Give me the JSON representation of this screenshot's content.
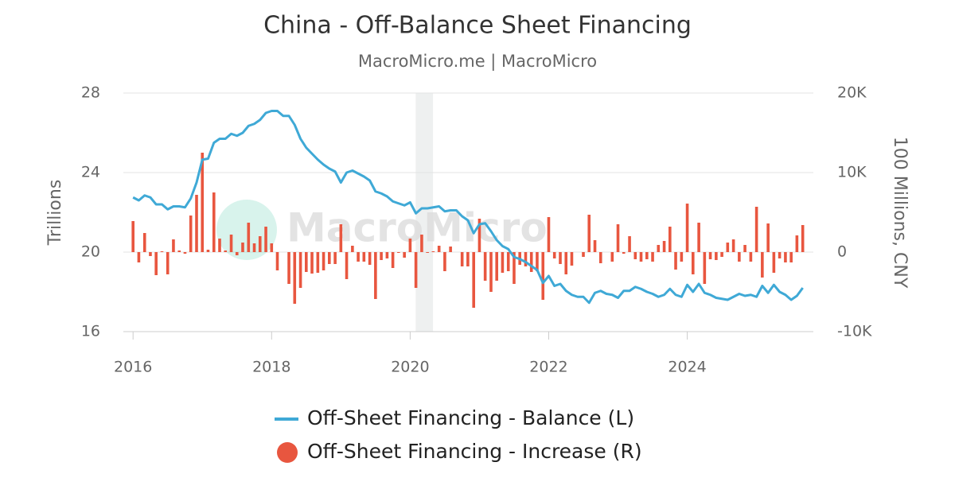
{
  "chart_data": {
    "type": "combo",
    "title": "China - Off-Balance Sheet Financing",
    "subtitle": "MacroMicro.me | MacroMicro",
    "watermark": "MacroMicro",
    "y_label": "Trillions",
    "y2_label": "100 Millions, CNY",
    "x": [
      2016,
      2016.083,
      2016.167,
      2016.25,
      2016.333,
      2016.417,
      2016.5,
      2016.583,
      2016.667,
      2016.75,
      2016.833,
      2016.917,
      2017,
      2017.083,
      2017.167,
      2017.25,
      2017.333,
      2017.417,
      2017.5,
      2017.583,
      2017.667,
      2017.75,
      2017.833,
      2017.917,
      2018,
      2018.083,
      2018.167,
      2018.25,
      2018.333,
      2018.417,
      2018.5,
      2018.583,
      2018.667,
      2018.75,
      2018.833,
      2018.917,
      2019,
      2019.083,
      2019.167,
      2019.25,
      2019.333,
      2019.417,
      2019.5,
      2019.583,
      2019.667,
      2019.75,
      2019.833,
      2019.917,
      2020,
      2020.083,
      2020.167,
      2020.25,
      2020.333,
      2020.417,
      2020.5,
      2020.583,
      2020.667,
      2020.75,
      2020.833,
      2020.917,
      2021,
      2021.083,
      2021.167,
      2021.25,
      2021.333,
      2021.417,
      2021.5,
      2021.583,
      2021.667,
      2021.75,
      2021.833,
      2021.917,
      2022,
      2022.083,
      2022.167,
      2022.25,
      2022.333,
      2022.417,
      2022.5,
      2022.583,
      2022.667,
      2022.75,
      2022.833,
      2022.917,
      2023,
      2023.083,
      2023.167,
      2023.25,
      2023.333,
      2023.417,
      2023.5,
      2023.583,
      2023.667,
      2023.75,
      2023.833,
      2023.917,
      2024,
      2024.083,
      2024.167,
      2024.25,
      2024.333,
      2024.417,
      2024.5,
      2024.583,
      2024.667,
      2024.75,
      2024.833,
      2024.917,
      2025,
      2025.083,
      2025.167,
      2025.25,
      2025.333,
      2025.417,
      2025.5,
      2025.583,
      2025.667
    ],
    "series": [
      {
        "name": "Off-Sheet Financing - Balance (L)",
        "type": "line",
        "axis": "y",
        "color": "#3fa9d6",
        "values": [
          22.75,
          22.6,
          22.85,
          22.75,
          22.4,
          22.4,
          22.15,
          22.3,
          22.3,
          22.25,
          22.7,
          23.5,
          24.65,
          24.7,
          25.5,
          25.7,
          25.7,
          25.95,
          25.85,
          26.0,
          26.35,
          26.45,
          26.65,
          27.0,
          27.1,
          27.1,
          26.85,
          26.85,
          26.4,
          25.7,
          25.25,
          24.95,
          24.65,
          24.4,
          24.2,
          24.05,
          23.5,
          24.0,
          24.1,
          23.95,
          23.8,
          23.6,
          23.05,
          22.95,
          22.8,
          22.55,
          22.45,
          22.35,
          22.5,
          21.95,
          22.2,
          22.2,
          22.25,
          22.3,
          22.05,
          22.1,
          22.1,
          21.8,
          21.6,
          20.95,
          21.4,
          21.45,
          21.05,
          20.6,
          20.3,
          20.15,
          19.75,
          19.65,
          19.5,
          19.3,
          19.1,
          18.45,
          18.8,
          18.3,
          18.4,
          18.05,
          17.85,
          17.75,
          17.75,
          17.45,
          17.95,
          18.05,
          17.9,
          17.85,
          17.7,
          18.05,
          18.05,
          18.25,
          18.15,
          18.0,
          17.9,
          17.75,
          17.85,
          18.15,
          17.85,
          17.75,
          18.35,
          18.0,
          18.4,
          17.95,
          17.85,
          17.7,
          17.65,
          17.6,
          17.75,
          17.9,
          17.8,
          17.85,
          17.75,
          18.3,
          17.95,
          18.35,
          18.0,
          17.85,
          17.6,
          17.8,
          18.2
        ]
      },
      {
        "name": "Off-Sheet Financing - Increase (R)",
        "type": "bar",
        "axis": "y2",
        "color": "#e8563f",
        "values": [
          3900,
          -1300,
          2400,
          -500,
          -2900,
          100,
          -2800,
          1600,
          200,
          -200,
          4600,
          7200,
          12500,
          300,
          7500,
          1700,
          200,
          2200,
          -400,
          1200,
          3700,
          1100,
          2000,
          3200,
          1100,
          -2300,
          0,
          -4000,
          -6500,
          -4500,
          -2500,
          -2700,
          -2600,
          -2300,
          -1500,
          -1500,
          3500,
          -3400,
          800,
          -1200,
          -1200,
          -1600,
          -5900,
          -1000,
          -800,
          -2000,
          -100,
          -700,
          1700,
          -4500,
          2200,
          -100,
          100,
          800,
          -2400,
          700,
          0,
          -1800,
          -1800,
          -7000,
          4200,
          -3600,
          -5000,
          -3600,
          -2600,
          -2400,
          -4000,
          -1600,
          -1800,
          -2500,
          -2400,
          -6000,
          4400,
          -800,
          -1500,
          -2800,
          -1700,
          0,
          -600,
          4700,
          1500,
          -1400,
          0,
          -1200,
          3500,
          -200,
          2000,
          -900,
          -1200,
          -900,
          -1200,
          900,
          1400,
          3200,
          -2200,
          -1200,
          6100,
          -2800,
          3700,
          -4000,
          -900,
          -1000,
          -600,
          1200,
          1600,
          -1200,
          900,
          -1200,
          5700,
          -3200,
          3600,
          -2600,
          -800,
          -1300,
          -1300,
          2100,
          3400
        ]
      }
    ],
    "shaded": [
      2020.08,
      2020.33
    ],
    "xlim": [
      2015.86,
      2025.82
    ],
    "xticks": [
      2016,
      2018,
      2020,
      2022,
      2024
    ],
    "ylim": [
      16,
      28
    ],
    "yticks": [
      16,
      20,
      24,
      28
    ],
    "y2lim": [
      -10000,
      20000
    ],
    "y2ticks": [
      {
        "value": -10000,
        "label": "-10K"
      },
      0,
      {
        "value": 10000,
        "label": "10K"
      },
      {
        "value": 20000,
        "label": "20K"
      }
    ],
    "grid": true
  }
}
